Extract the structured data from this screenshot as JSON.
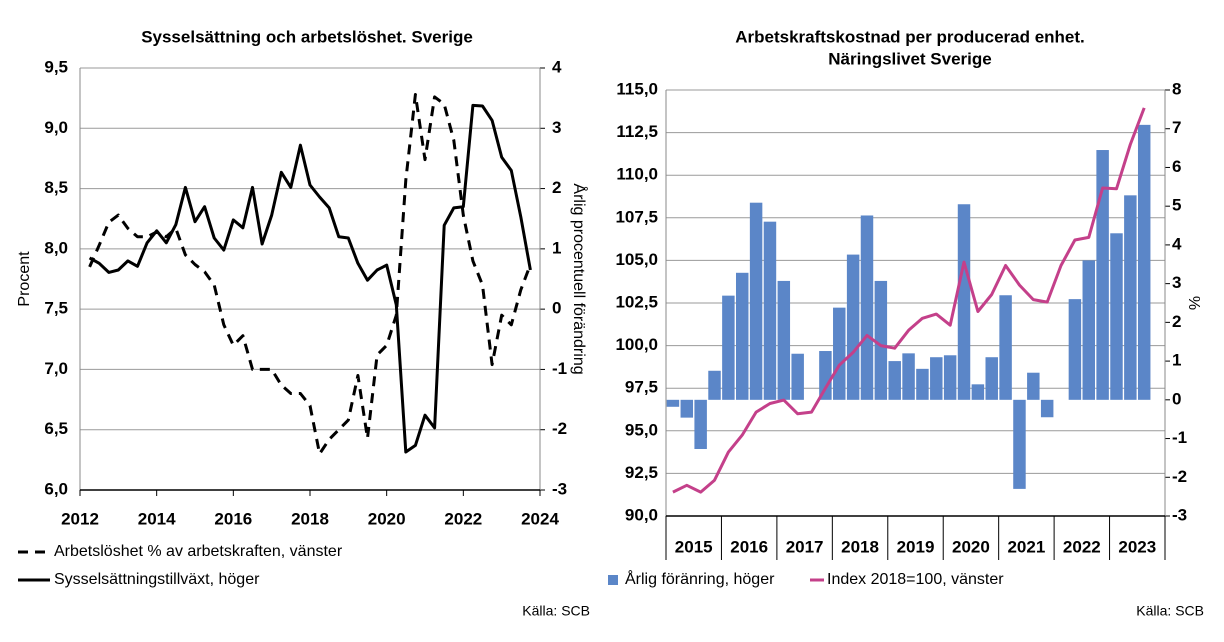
{
  "chart_data": [
    {
      "type": "line",
      "title": "Sysselsättning och arbetslöshet. Sverige",
      "y_label": "Procent",
      "y2_label": "Årlig procentuell förändring",
      "source": "Källa: SCB",
      "grid": true,
      "legend": "bottom",
      "xlim": [
        2012,
        2024
      ],
      "xticks": [
        2012,
        2014,
        2016,
        2018,
        2020,
        2022,
        2024
      ],
      "ylim": [
        6,
        9.5
      ],
      "yticks": [
        {
          "value": 6,
          "label": "6,0"
        },
        {
          "value": 6.5,
          "label": "6,5"
        },
        {
          "value": 7,
          "label": "7,0"
        },
        {
          "value": 7.5,
          "label": "7,5"
        },
        {
          "value": 8,
          "label": "8,0"
        },
        {
          "value": 8.5,
          "label": "8,5"
        },
        {
          "value": 9,
          "label": "9,0"
        },
        {
          "value": 9.5,
          "label": "9,5"
        }
      ],
      "y2lim": [
        -3,
        4
      ],
      "y2ticks": [
        -3,
        -2,
        -1,
        0,
        1,
        2,
        3,
        4
      ],
      "x": [
        2012.25,
        2012.5,
        2012.75,
        2013,
        2013.25,
        2013.5,
        2013.75,
        2014,
        2014.25,
        2014.5,
        2014.75,
        2015,
        2015.25,
        2015.5,
        2015.75,
        2016,
        2016.25,
        2016.5,
        2016.75,
        2017,
        2017.25,
        2017.5,
        2017.75,
        2018,
        2018.25,
        2018.5,
        2018.75,
        2019,
        2019.25,
        2019.5,
        2019.75,
        2020,
        2020.25,
        2020.5,
        2020.75,
        2021,
        2021.25,
        2021.5,
        2021.75,
        2022,
        2022.25,
        2022.5,
        2022.75,
        2023,
        2023.25,
        2023.5,
        2023.75
      ],
      "series": [
        {
          "name": "Arbetslöshet % av arbetskraften, vänster",
          "color": "#000000",
          "style": "dashed",
          "values": [
            7.85,
            8.03,
            8.22,
            8.28,
            8.17,
            8.1,
            8.1,
            8.14,
            8.1,
            8.17,
            7.95,
            7.87,
            7.81,
            7.7,
            7.37,
            7.2,
            7.28,
            7.0,
            7.0,
            7.0,
            6.87,
            6.8,
            6.8,
            6.7,
            6.3,
            6.42,
            6.5,
            6.58,
            6.95,
            6.43,
            7.12,
            7.2,
            7.45,
            8.57,
            9.28,
            8.74,
            9.26,
            9.2,
            8.9,
            8.28,
            7.9,
            7.7,
            7.04,
            7.45,
            7.37,
            7.66,
            7.87
          ]
        },
        {
          "name": "Sysselsättningstillväxt, höger",
          "color": "#000000",
          "style": "solid",
          "axis": "y2",
          "values": [
            0.85,
            0.76,
            0.61,
            0.65,
            0.8,
            0.71,
            1.1,
            1.3,
            1.1,
            1.4,
            2.02,
            1.45,
            1.7,
            1.18,
            0.98,
            1.48,
            1.35,
            2.02,
            1.08,
            1.56,
            2.27,
            2.02,
            2.72,
            2.06,
            1.86,
            1.68,
            1.2,
            1.18,
            0.76,
            0.48,
            0.65,
            0.73,
            0.07,
            -2.37,
            -2.26,
            -1.76,
            -1.97,
            1.39,
            1.68,
            1.7,
            3.38,
            3.37,
            3.13,
            2.52,
            2.3,
            1.53,
            0.65
          ]
        }
      ]
    },
    {
      "type": "bar",
      "title": [
        "Arbetskraftskostnad per producerad enhet.",
        "Näringslivet Sverige"
      ],
      "y2_label": "%",
      "source": "Källa: SCB",
      "grid": true,
      "legend": "bottom",
      "ylim": [
        90,
        115
      ],
      "yticks": [
        {
          "value": 90,
          "label": "90,0"
        },
        {
          "value": 92.5,
          "label": "92,5"
        },
        {
          "value": 95,
          "label": "95,0"
        },
        {
          "value": 97.5,
          "label": "97,5"
        },
        {
          "value": 100,
          "label": "100,0"
        },
        {
          "value": 102.5,
          "label": "102,5"
        },
        {
          "value": 105,
          "label": "105,0"
        },
        {
          "value": 107.5,
          "label": "107,5"
        },
        {
          "value": 110,
          "label": "110,0"
        },
        {
          "value": 112.5,
          "label": "112,5"
        },
        {
          "value": 115,
          "label": "115,0"
        }
      ],
      "y2lim": [
        -3,
        8
      ],
      "y2ticks": [
        -3,
        -2,
        -1,
        0,
        1,
        2,
        3,
        4,
        5,
        6,
        7,
        8
      ],
      "categories": [
        null,
        "2015",
        null,
        null,
        null,
        "2016",
        null,
        null,
        null,
        "2017",
        null,
        null,
        null,
        "2018",
        null,
        null,
        null,
        "2019",
        null,
        null,
        null,
        "2020",
        null,
        null,
        null,
        "2021",
        null,
        null,
        null,
        "2022",
        null,
        null,
        null,
        "2023",
        null
      ],
      "series": [
        {
          "name": "Årlig föränring, höger",
          "color": "#5b86c8",
          "axis": "y2",
          "values": [
            -0.18,
            -0.46,
            -1.27,
            0.75,
            2.69,
            3.28,
            5.09,
            4.6,
            3.07,
            1.19,
            0.0,
            1.26,
            2.38,
            3.75,
            4.76,
            3.07,
            1.0,
            1.2,
            0.8,
            1.1,
            1.15,
            5.05,
            0.4,
            1.1,
            2.7,
            -2.3,
            0.7,
            -0.45,
            0.0,
            2.6,
            3.6,
            6.45,
            4.3,
            5.28,
            7.1
          ]
        },
        {
          "name": "Index 2018=100, vänster",
          "color": "#c4408a",
          "type": "line",
          "values": [
            91.4,
            91.8,
            91.4,
            92.1,
            93.75,
            94.75,
            96.1,
            96.6,
            96.8,
            96.0,
            96.1,
            97.5,
            98.85,
            99.6,
            100.6,
            100.0,
            99.85,
            100.9,
            101.6,
            101.85,
            101.2,
            104.9,
            102.0,
            103.0,
            104.7,
            103.55,
            102.7,
            102.55,
            104.7,
            106.2,
            106.35,
            109.25,
            109.2,
            111.8,
            113.95
          ]
        }
      ]
    }
  ]
}
